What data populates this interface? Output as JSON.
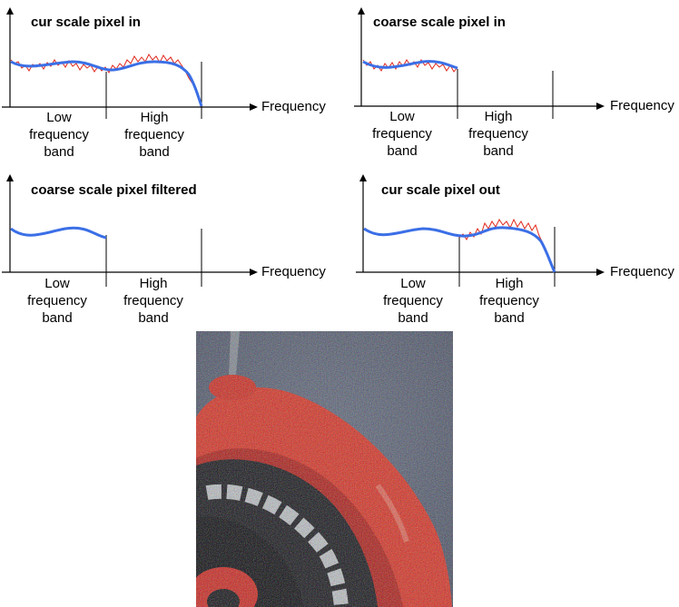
{
  "axis_label": "Frequency",
  "panels": [
    {
      "title": "cur scale pixel in",
      "low_band": [
        "Low",
        "frequency",
        "band"
      ],
      "high_band": [
        "High",
        "frequency",
        "band"
      ]
    },
    {
      "title": "coarse scale pixel in",
      "low_band": [
        "Low",
        "frequency",
        "band"
      ],
      "high_band": [
        "High",
        "frequency",
        "band"
      ]
    },
    {
      "title": "coarse scale pixel filtered",
      "low_band": [
        "Low",
        "frequency",
        "band"
      ],
      "high_band": [
        "High",
        "frequency",
        "band"
      ]
    },
    {
      "title": "cur scale pixel out",
      "low_band": [
        "Low",
        "frequency",
        "band"
      ],
      "high_band": [
        "High",
        "frequency",
        "band"
      ]
    }
  ],
  "colors": {
    "smooth_curve": "#3b6fe6",
    "noisy_curve": "#e0281c",
    "axis": "#000000"
  },
  "photo": {
    "subject": "noisy close-up of red ring object on blue-grey background",
    "icon": "photo-image"
  }
}
